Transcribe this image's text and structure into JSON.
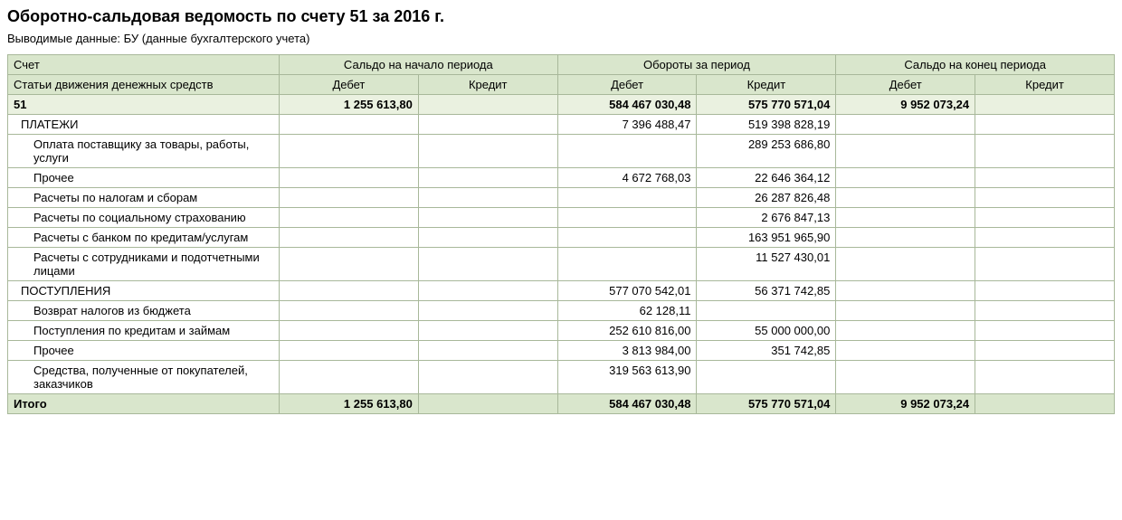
{
  "title": "Оборотно-сальдовая ведомость по счету 51 за 2016 г.",
  "subtitle": "Выводимые данные:  БУ (данные бухгалтерского учета)",
  "headers": {
    "account": "Счет",
    "group1": "Сальдо на начало периода",
    "group2": "Обороты за период",
    "group3": "Сальдо на конец периода",
    "subaccount": "Статьи движения денежных средств",
    "debit": "Дебет",
    "credit": "Кредит"
  },
  "account_row": {
    "label": "51",
    "start_debit": "1 255 613,80",
    "start_credit": "",
    "turn_debit": "584 467 030,48",
    "turn_credit": "575 770 571,04",
    "end_debit": "9 952 073,24",
    "end_credit": ""
  },
  "rows": [
    {
      "label": "ПЛАТЕЖИ",
      "indent": 1,
      "start_debit": "",
      "start_credit": "",
      "turn_debit": "7 396 488,47",
      "turn_credit": "519 398 828,19",
      "end_debit": "",
      "end_credit": ""
    },
    {
      "label": "Оплата поставщику за товары, работы, услуги",
      "indent": 2,
      "start_debit": "",
      "start_credit": "",
      "turn_debit": "",
      "turn_credit": "289 253 686,80",
      "end_debit": "",
      "end_credit": ""
    },
    {
      "label": "Прочее",
      "indent": 2,
      "start_debit": "",
      "start_credit": "",
      "turn_debit": "4 672 768,03",
      "turn_credit": "22 646 364,12",
      "end_debit": "",
      "end_credit": ""
    },
    {
      "label": "Расчеты по налогам и сборам",
      "indent": 2,
      "start_debit": "",
      "start_credit": "",
      "turn_debit": "",
      "turn_credit": "26 287 826,48",
      "end_debit": "",
      "end_credit": ""
    },
    {
      "label": "Расчеты по социальному страхованию",
      "indent": 2,
      "start_debit": "",
      "start_credit": "",
      "turn_debit": "",
      "turn_credit": "2 676 847,13",
      "end_debit": "",
      "end_credit": ""
    },
    {
      "label": "Расчеты с банком по кредитам/услугам",
      "indent": 2,
      "start_debit": "",
      "start_credit": "",
      "turn_debit": "",
      "turn_credit": "163 951 965,90",
      "end_debit": "",
      "end_credit": ""
    },
    {
      "label": "Расчеты с сотрудниками и подотчетными лицами",
      "indent": 2,
      "start_debit": "",
      "start_credit": "",
      "turn_debit": "",
      "turn_credit": "11 527 430,01",
      "end_debit": "",
      "end_credit": ""
    },
    {
      "label": "ПОСТУПЛЕНИЯ",
      "indent": 1,
      "start_debit": "",
      "start_credit": "",
      "turn_debit": "577 070 542,01",
      "turn_credit": "56 371 742,85",
      "end_debit": "",
      "end_credit": ""
    },
    {
      "label": "Возврат налогов из бюджета",
      "indent": 2,
      "start_debit": "",
      "start_credit": "",
      "turn_debit": "62 128,11",
      "turn_credit": "",
      "end_debit": "",
      "end_credit": ""
    },
    {
      "label": "Поступления по кредитам и займам",
      "indent": 2,
      "start_debit": "",
      "start_credit": "",
      "turn_debit": "252 610 816,00",
      "turn_credit": "55 000 000,00",
      "end_debit": "",
      "end_credit": ""
    },
    {
      "label": "Прочее",
      "indent": 2,
      "start_debit": "",
      "start_credit": "",
      "turn_debit": "3 813 984,00",
      "turn_credit": "351 742,85",
      "end_debit": "",
      "end_credit": ""
    },
    {
      "label": "Средства, полученные от покупателей, заказчиков",
      "indent": 2,
      "start_debit": "",
      "start_credit": "",
      "turn_debit": "319 563 613,90",
      "turn_credit": "",
      "end_debit": "",
      "end_credit": ""
    }
  ],
  "total_row": {
    "label": "Итого",
    "start_debit": "1 255 613,80",
    "start_credit": "",
    "turn_debit": "584 467 030,48",
    "turn_credit": "575 770 571,04",
    "end_debit": "9 952 073,24",
    "end_credit": ""
  },
  "colors": {
    "header_bg": "#d9e6cc",
    "account_bg": "#eaf1e0",
    "border": "#a8b89a"
  }
}
